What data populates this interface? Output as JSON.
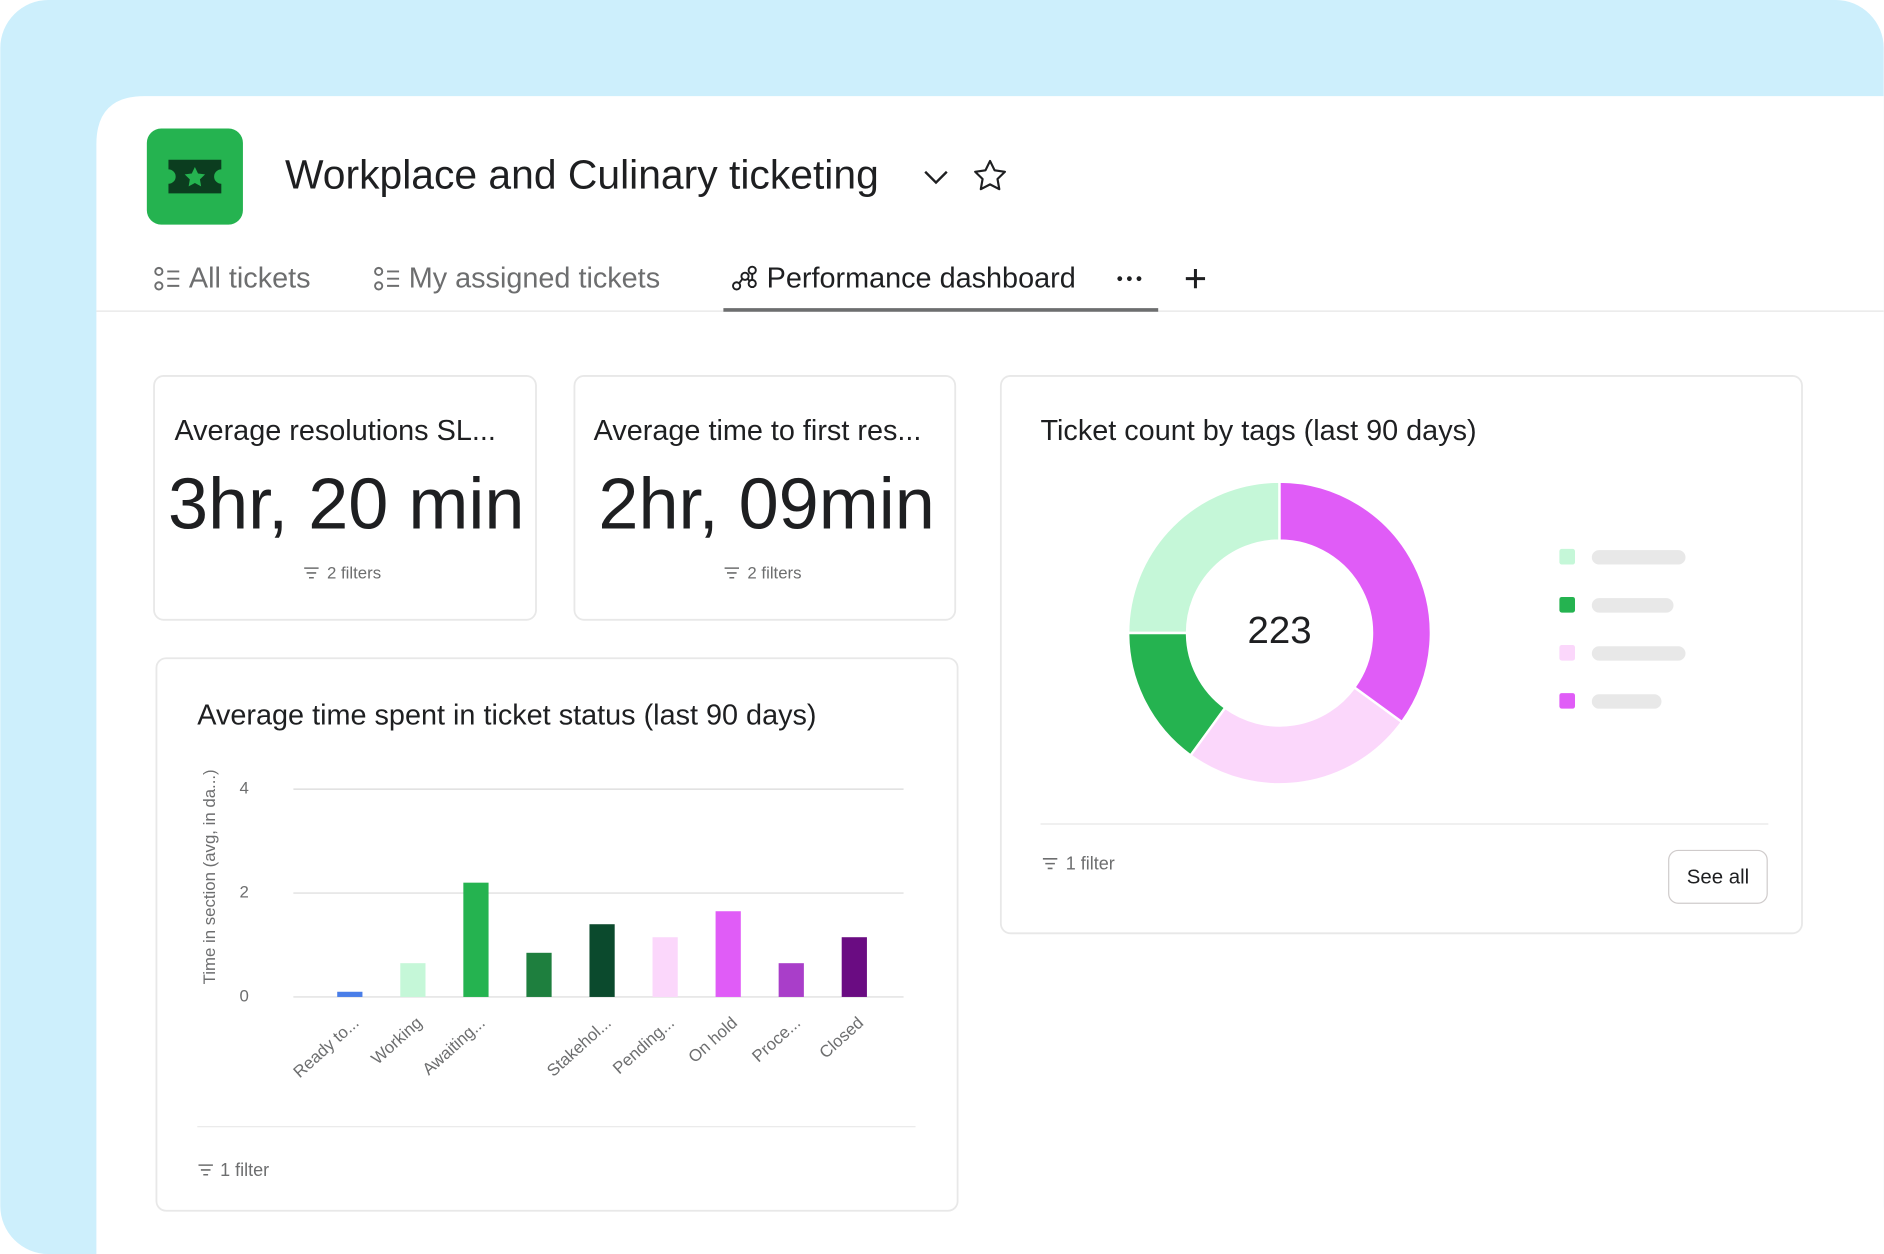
{
  "header": {
    "title": "Workplace and Culinary ticketing"
  },
  "tabs": [
    "All tickets",
    "My assigned tickets",
    "Performance dashboard"
  ],
  "cards": [
    {
      "title": "Average resolutions SL...",
      "value": "3hr, 20 min",
      "filter": "2 filters"
    },
    {
      "title": "Average time to first res...",
      "value": "2hr, 09min",
      "filter": "2 filters"
    }
  ],
  "chart_data": [
    {
      "type": "donut",
      "title": "Ticket count by tags (last 90 days)",
      "total": 223,
      "values": [
        25,
        15,
        25,
        35
      ],
      "colors": [
        "#c5f7d8",
        "#25b350",
        "#fbd7fb",
        "#e05cf7"
      ],
      "filter": "1 filter",
      "button": "See all"
    },
    {
      "type": "bar",
      "title": "Average time spent in ticket status (last 90 days)",
      "ylabel": "Time in section (avg, in da...)",
      "categories": [
        "Ready to...",
        "Working",
        "Awaiting...",
        null,
        "Stakehol...",
        "Pending...",
        "On hold",
        "Proce...",
        "Closed"
      ],
      "values": [
        0.1,
        0.65,
        2.2,
        0.85,
        1.4,
        1.15,
        1.65,
        0.65,
        1.15
      ],
      "colors": [
        "#4a7ee8",
        "#c5f7d8",
        "#25b350",
        "#1e7f3e",
        "#0b4a2d",
        "#fbd7fb",
        "#e05cf7",
        "#a93ec9",
        "#6a0c82"
      ],
      "ylim": [
        0,
        4
      ],
      "yticks": [
        0,
        2,
        4
      ],
      "grid": true,
      "filter": "1 filter"
    }
  ]
}
